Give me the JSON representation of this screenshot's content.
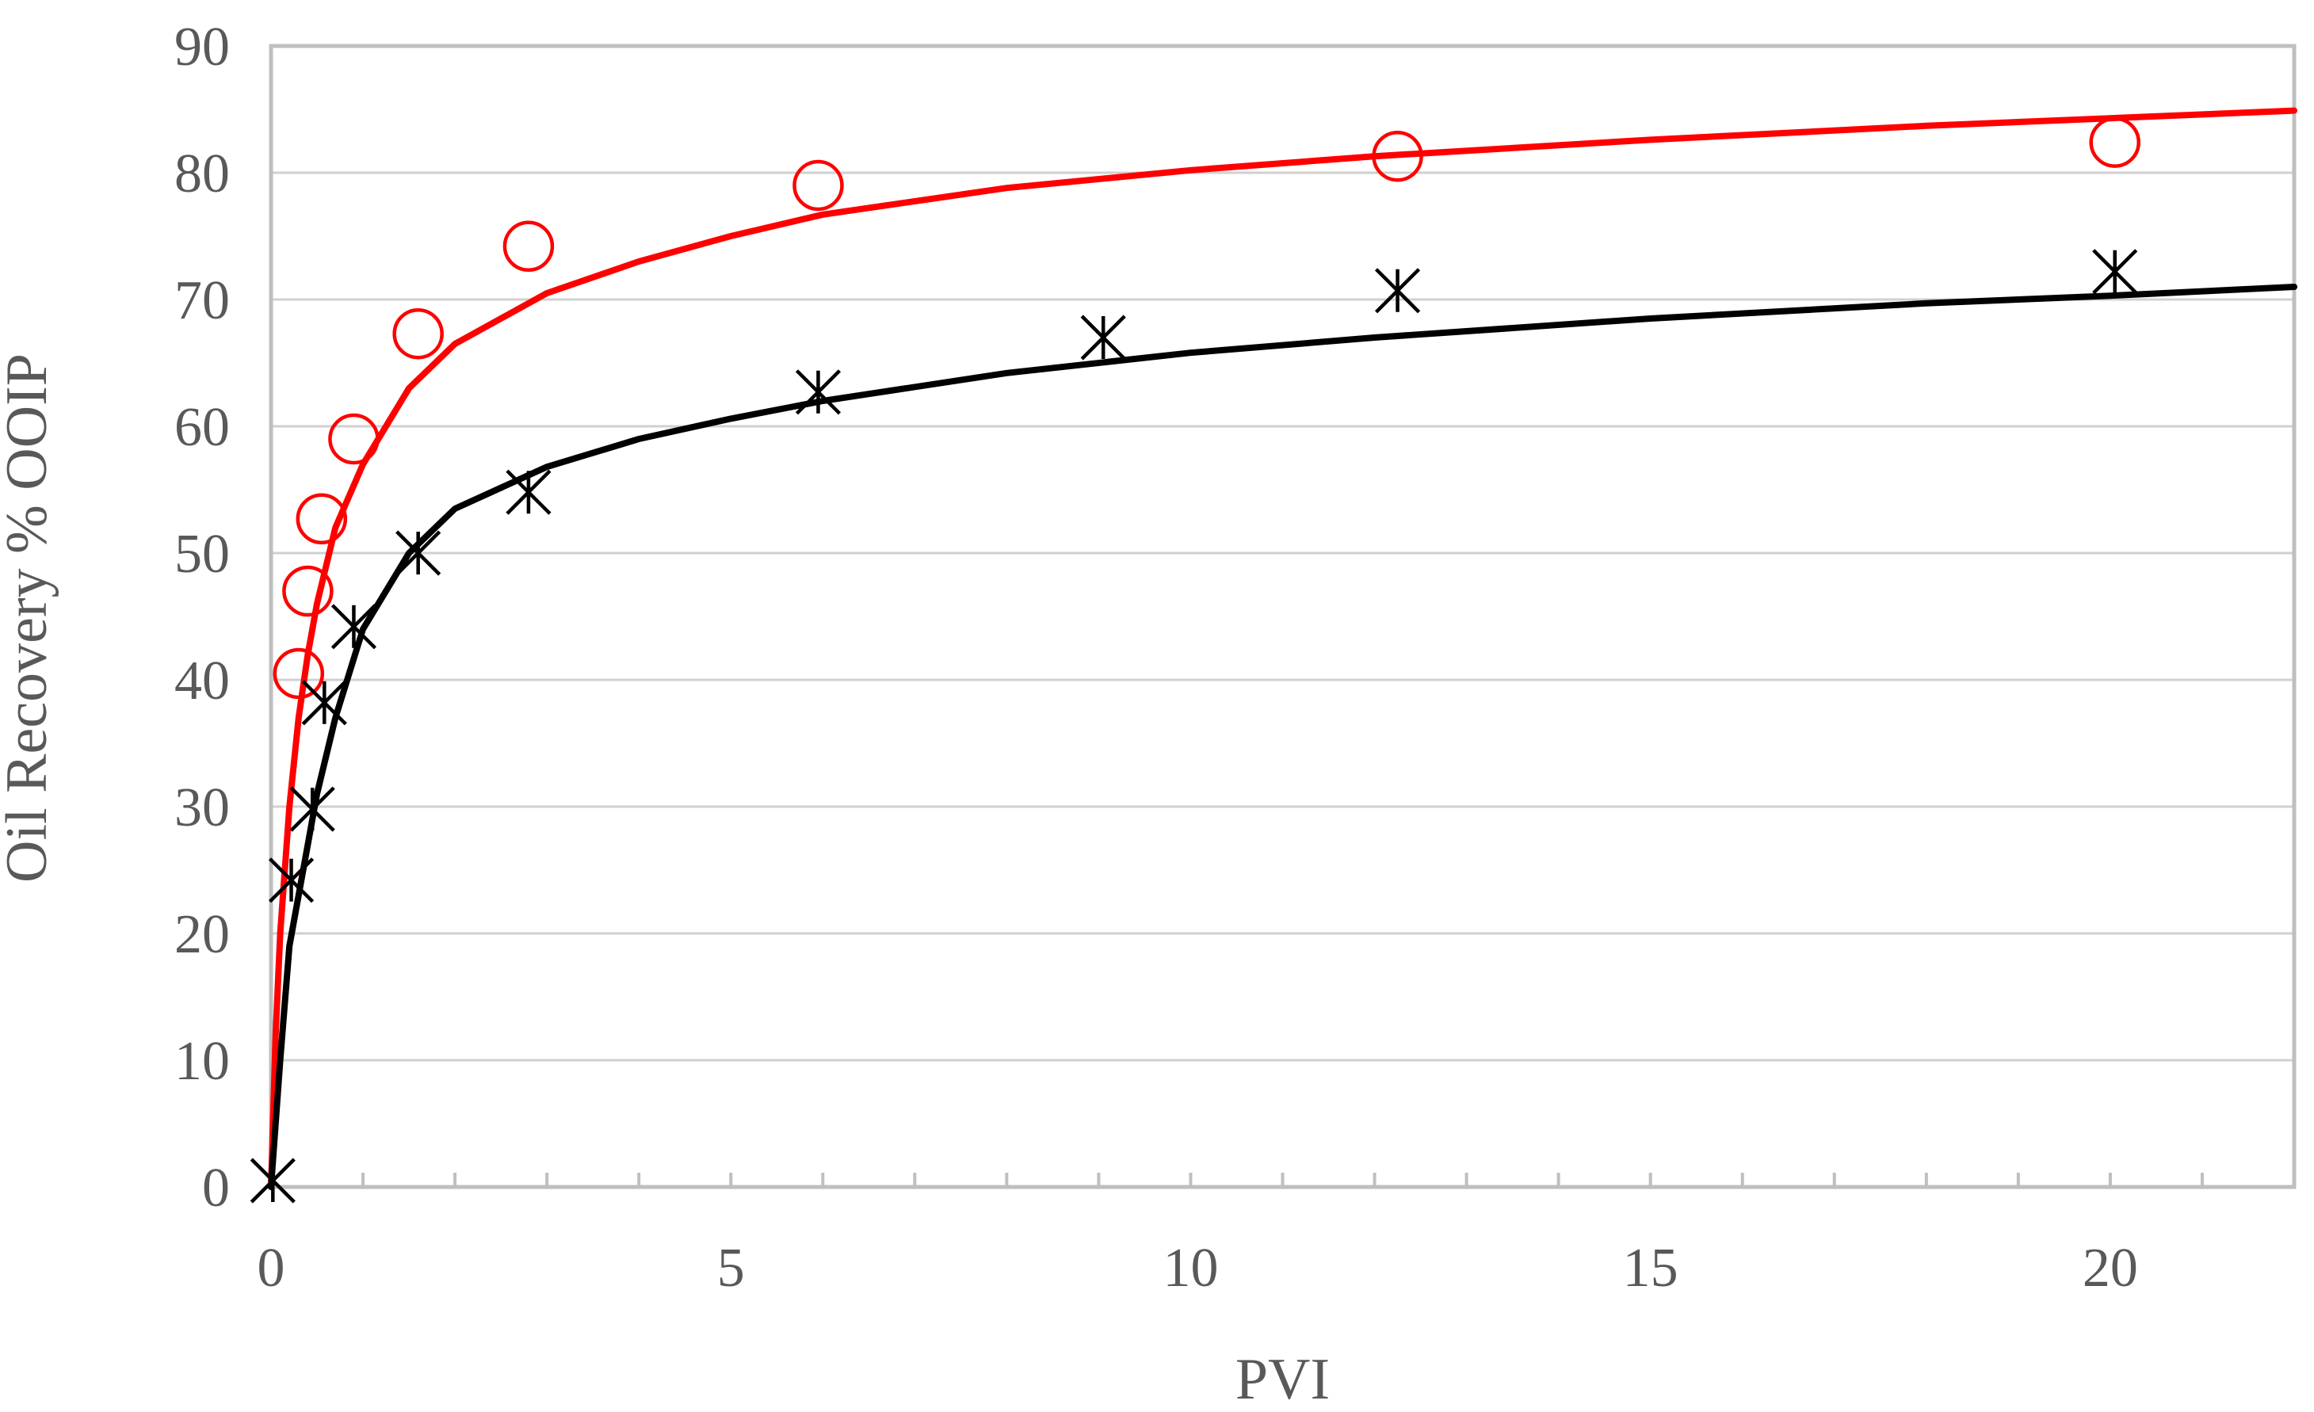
{
  "chart_data": {
    "type": "scatter",
    "title": "",
    "xlabel": "PVI",
    "ylabel": "Oil Recovery % OOIP",
    "xlim": [
      0,
      22
    ],
    "ylim": [
      0,
      90
    ],
    "x_major_ticks": [
      0,
      5,
      10,
      15,
      20
    ],
    "x_minor_step": 1,
    "y_ticks": [
      0,
      10,
      20,
      30,
      40,
      50,
      60,
      70,
      80,
      90
    ],
    "grid": "horizontal",
    "legend": "none",
    "series": [
      {
        "name": "red-circles",
        "marker": "circle",
        "color": "#ff0000",
        "points": [
          {
            "x": 0.3,
            "y": 40.5
          },
          {
            "x": 0.4,
            "y": 47
          },
          {
            "x": 0.55,
            "y": 52.7
          },
          {
            "x": 0.9,
            "y": 59
          },
          {
            "x": 1.6,
            "y": 67.3
          },
          {
            "x": 2.8,
            "y": 74.2
          },
          {
            "x": 5.95,
            "y": 79
          },
          {
            "x": 12.25,
            "y": 81.3
          },
          {
            "x": 20.05,
            "y": 82.4
          }
        ]
      },
      {
        "name": "black-asterisks",
        "marker": "asterisk",
        "color": "#000000",
        "points": [
          {
            "x": 0.02,
            "y": 0.5
          },
          {
            "x": 0.22,
            "y": 24.2
          },
          {
            "x": 0.45,
            "y": 29.8
          },
          {
            "x": 0.58,
            "y": 38.2
          },
          {
            "x": 0.9,
            "y": 44.2
          },
          {
            "x": 1.6,
            "y": 50
          },
          {
            "x": 2.8,
            "y": 54.8
          },
          {
            "x": 5.95,
            "y": 62.7
          },
          {
            "x": 9.05,
            "y": 67
          },
          {
            "x": 12.25,
            "y": 70.7
          },
          {
            "x": 20.05,
            "y": 72.2
          }
        ]
      }
    ],
    "fit_curves": [
      {
        "name": "red-fit",
        "color": "#ff0000",
        "points": [
          [
            0,
            0
          ],
          [
            0.05,
            12
          ],
          [
            0.1,
            20
          ],
          [
            0.2,
            30
          ],
          [
            0.3,
            37
          ],
          [
            0.4,
            42
          ],
          [
            0.5,
            46
          ],
          [
            0.7,
            52
          ],
          [
            1.0,
            57
          ],
          [
            1.5,
            63
          ],
          [
            2.0,
            66.5
          ],
          [
            3.0,
            70.5
          ],
          [
            4.0,
            73
          ],
          [
            5.0,
            75
          ],
          [
            6.0,
            76.7
          ],
          [
            8.0,
            78.8
          ],
          [
            10.0,
            80.2
          ],
          [
            12.0,
            81.3
          ],
          [
            15.0,
            82.6
          ],
          [
            18.0,
            83.7
          ],
          [
            20.0,
            84.3
          ],
          [
            22.0,
            84.9
          ]
        ]
      },
      {
        "name": "black-fit",
        "color": "#000000",
        "points": [
          [
            0,
            0
          ],
          [
            0.1,
            10
          ],
          [
            0.2,
            19
          ],
          [
            0.3,
            23
          ],
          [
            0.4,
            27
          ],
          [
            0.5,
            31
          ],
          [
            0.7,
            37
          ],
          [
            1.0,
            44
          ],
          [
            1.5,
            50
          ],
          [
            2.0,
            53.5
          ],
          [
            3.0,
            56.8
          ],
          [
            4.0,
            59
          ],
          [
            5.0,
            60.6
          ],
          [
            6.0,
            62
          ],
          [
            8.0,
            64.2
          ],
          [
            10.0,
            65.8
          ],
          [
            12.0,
            67
          ],
          [
            15.0,
            68.5
          ],
          [
            18.0,
            69.7
          ],
          [
            20.0,
            70.3
          ],
          [
            22.0,
            71
          ]
        ]
      }
    ]
  }
}
